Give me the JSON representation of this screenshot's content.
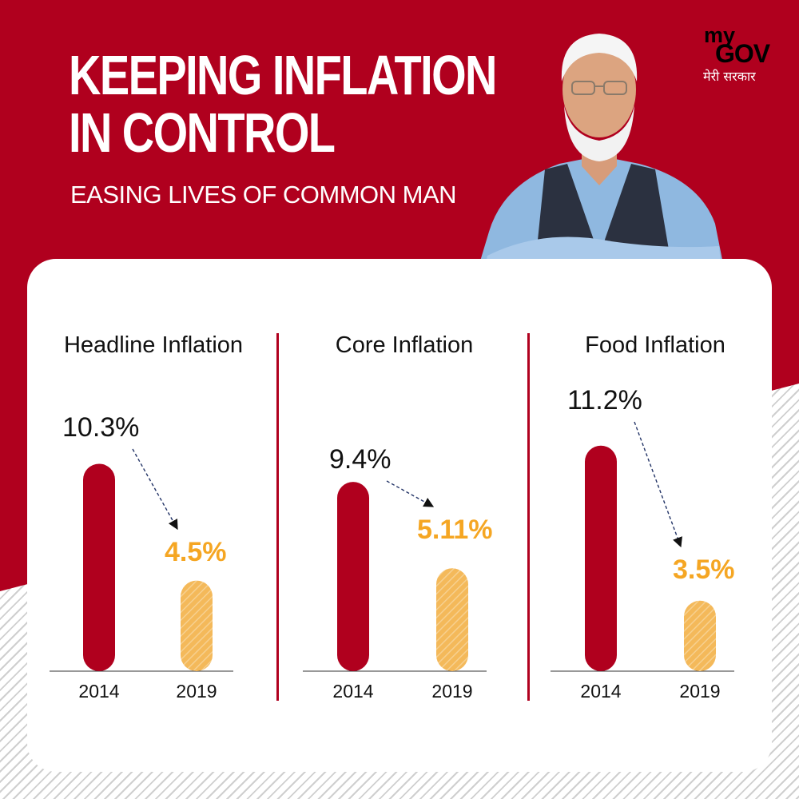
{
  "header": {
    "title_line1": "KEEPING INFLATION",
    "title_line2": "IN CONTROL",
    "subtitle": "EASING LIVES OF COMMON MAN"
  },
  "logo": {
    "my": "my",
    "gov": "GOV",
    "tagline": "मेरी सरकार"
  },
  "colors": {
    "brand_red": "#b0001e",
    "bar_2014": "#b0001e",
    "bar_2019": "#f4b95a",
    "label_2019": "#f5a623",
    "text": "#111111"
  },
  "chart_data": [
    {
      "type": "bar",
      "title": "Headline Inflation",
      "categories": [
        "2014",
        "2019"
      ],
      "values": [
        10.3,
        4.5
      ],
      "value_labels": [
        "10.3%",
        "4.5%"
      ]
    },
    {
      "type": "bar",
      "title": "Core Inflation",
      "categories": [
        "2014",
        "2019"
      ],
      "values": [
        9.4,
        5.11
      ],
      "value_labels": [
        "9.4%",
        "5.11%"
      ]
    },
    {
      "type": "bar",
      "title": "Food Inflation",
      "categories": [
        "2014",
        "2019"
      ],
      "values": [
        11.2,
        3.5
      ],
      "value_labels": [
        "11.2%",
        "3.5%"
      ]
    }
  ]
}
